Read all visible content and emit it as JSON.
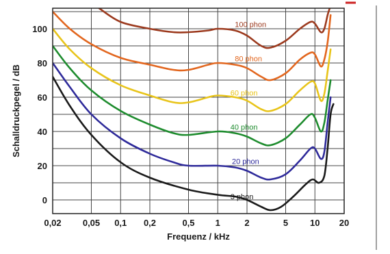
{
  "chart_data": {
    "type": "line",
    "xlabel": "Frequenz  /  kHz",
    "ylabel": "Schalldruckpegel  /  dB",
    "x_scale": "log",
    "xlim": [
      0.02,
      20
    ],
    "ylim": [
      -8,
      112
    ],
    "x_ticks": [
      0.02,
      0.05,
      0.1,
      0.2,
      0.5,
      1,
      2,
      5,
      10,
      20
    ],
    "x_tick_labels": [
      "0,02",
      "0,05",
      "0,1",
      "0,2",
      "0,5",
      "1",
      "2",
      "5",
      "10",
      "20"
    ],
    "y_ticks": [
      0,
      20,
      40,
      60,
      80,
      100
    ],
    "y_tick_labels": [
      "0",
      "20",
      "40",
      "60",
      "80",
      "100"
    ],
    "grid": true,
    "series": [
      {
        "name": "3 phon",
        "color": "#1a1a1a",
        "label_at": [
          1.35,
          0.5
        ],
        "points": [
          [
            0.02,
            72
          ],
          [
            0.03,
            55
          ],
          [
            0.05,
            38
          ],
          [
            0.1,
            22
          ],
          [
            0.2,
            13
          ],
          [
            0.5,
            6
          ],
          [
            1,
            3
          ],
          [
            1.5,
            2
          ],
          [
            2,
            0
          ],
          [
            2.8,
            -4
          ],
          [
            3.5,
            -6
          ],
          [
            4.5,
            -4
          ],
          [
            6,
            2
          ],
          [
            8,
            9
          ],
          [
            9.5,
            12
          ],
          [
            11,
            10
          ],
          [
            12.5,
            14
          ],
          [
            13.5,
            30
          ],
          [
            14.5,
            50
          ],
          [
            15.5,
            56
          ]
        ]
      },
      {
        "name": "20 phon",
        "color": "#2e2a9a",
        "label_at": [
          1.4,
          21
        ],
        "points": [
          [
            0.02,
            80
          ],
          [
            0.03,
            66
          ],
          [
            0.05,
            50
          ],
          [
            0.1,
            36
          ],
          [
            0.2,
            27
          ],
          [
            0.35,
            22
          ],
          [
            0.5,
            20
          ],
          [
            1,
            20
          ],
          [
            1.5,
            19
          ],
          [
            2,
            17
          ],
          [
            2.8,
            13
          ],
          [
            3.5,
            12
          ],
          [
            5,
            15
          ],
          [
            7,
            23
          ],
          [
            9,
            30
          ],
          [
            10,
            30
          ],
          [
            11.5,
            24
          ],
          [
            12.5,
            28
          ],
          [
            13.5,
            45
          ],
          [
            14.5,
            60
          ]
        ]
      },
      {
        "name": "40 phon",
        "color": "#1e8c2e",
        "label_at": [
          1.35,
          41
        ],
        "points": [
          [
            0.02,
            90
          ],
          [
            0.03,
            77
          ],
          [
            0.05,
            64
          ],
          [
            0.1,
            52
          ],
          [
            0.2,
            44
          ],
          [
            0.35,
            39
          ],
          [
            0.5,
            38
          ],
          [
            1,
            40
          ],
          [
            1.5,
            39
          ],
          [
            2,
            37
          ],
          [
            2.8,
            33
          ],
          [
            3.5,
            32
          ],
          [
            5,
            36
          ],
          [
            7,
            44
          ],
          [
            9,
            50
          ],
          [
            10,
            48
          ],
          [
            11.5,
            40
          ],
          [
            12.5,
            45
          ],
          [
            13.5,
            58
          ],
          [
            14.5,
            70
          ]
        ]
      },
      {
        "name": "60 phon",
        "color": "#e8c41a",
        "label_at": [
          1.35,
          61
        ],
        "points": [
          [
            0.02,
            100
          ],
          [
            0.03,
            88
          ],
          [
            0.05,
            77
          ],
          [
            0.1,
            67
          ],
          [
            0.2,
            61
          ],
          [
            0.35,
            57
          ],
          [
            0.5,
            57
          ],
          [
            0.8,
            60
          ],
          [
            1,
            61
          ],
          [
            1.5,
            60
          ],
          [
            2,
            58
          ],
          [
            2.8,
            53
          ],
          [
            3.5,
            52
          ],
          [
            5,
            56
          ],
          [
            7,
            64
          ],
          [
            9,
            69
          ],
          [
            10,
            68
          ],
          [
            11.5,
            58
          ],
          [
            12.5,
            62
          ],
          [
            13.5,
            75
          ],
          [
            14.5,
            88
          ]
        ]
      },
      {
        "name": "80 phon",
        "color": "#e2661e",
        "label_at": [
          1.5,
          81
        ],
        "points": [
          [
            0.02,
            110
          ],
          [
            0.03,
            100
          ],
          [
            0.05,
            91
          ],
          [
            0.1,
            83
          ],
          [
            0.2,
            79
          ],
          [
            0.35,
            76
          ],
          [
            0.5,
            76
          ],
          [
            0.8,
            79
          ],
          [
            1,
            80
          ],
          [
            1.5,
            79
          ],
          [
            2,
            77
          ],
          [
            2.8,
            72
          ],
          [
            3.5,
            70
          ],
          [
            5,
            74
          ],
          [
            7,
            82
          ],
          [
            9,
            86
          ],
          [
            10,
            85
          ],
          [
            11.5,
            78
          ],
          [
            12.5,
            82
          ],
          [
            13.5,
            92
          ],
          [
            14.5,
            108
          ]
        ]
      },
      {
        "name": "100 phon",
        "color": "#9c3a1e",
        "label_at": [
          1.5,
          101
        ],
        "points": [
          [
            0.06,
            112
          ],
          [
            0.1,
            104
          ],
          [
            0.2,
            100
          ],
          [
            0.35,
            98
          ],
          [
            0.5,
            98
          ],
          [
            0.8,
            99
          ],
          [
            1,
            100
          ],
          [
            1.5,
            99
          ],
          [
            2,
            96
          ],
          [
            2.8,
            90
          ],
          [
            3.5,
            89
          ],
          [
            5,
            93
          ],
          [
            7,
            100
          ],
          [
            9,
            104
          ],
          [
            10,
            103
          ],
          [
            11.5,
            98
          ],
          [
            12.5,
            100
          ],
          [
            13.5,
            108
          ],
          [
            14.2,
            112
          ]
        ]
      }
    ]
  }
}
